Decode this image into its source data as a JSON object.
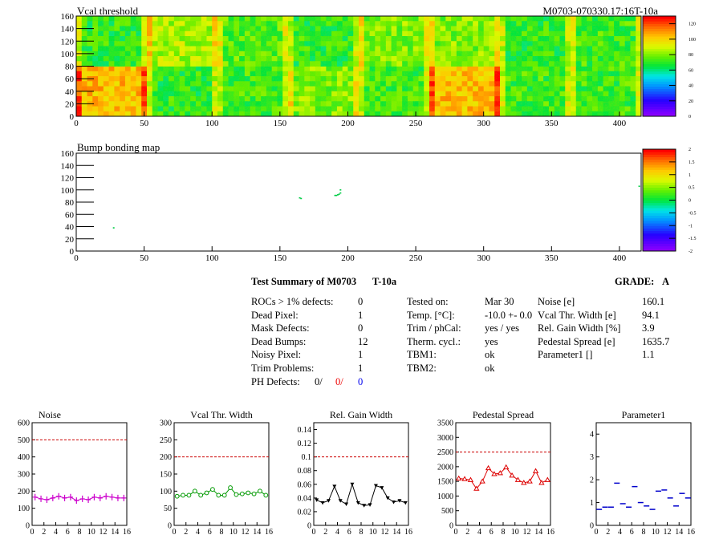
{
  "header": {
    "left_title": "Vcal threshold",
    "right_title": "M0703-070330.17:16T-10a"
  },
  "colors": {
    "marker_noise": "#cc00cc",
    "marker_vcal": "#009900",
    "marker_gain": "#000000",
    "marker_ped": "#dd0000",
    "marker_par1": "#0000cc",
    "reference_line": "#cc0000"
  },
  "chart_data": [
    {
      "type": "heatmap",
      "name": "vcal_threshold",
      "title": "Vcal threshold",
      "xlim": [
        0,
        416
      ],
      "ylim": [
        0,
        160
      ],
      "xticks": [
        0,
        50,
        100,
        150,
        200,
        250,
        300,
        350,
        400
      ],
      "yticks": [
        0,
        20,
        40,
        60,
        80,
        100,
        120,
        140,
        160
      ],
      "roc_grid": {
        "columns": 8,
        "rows": 2,
        "roc_width": 52,
        "roc_height": 80
      },
      "roc_mean_threshold": [
        [
          105,
          70,
          72,
          80,
          72,
          105,
          72,
          72
        ],
        [
          70,
          85,
          75,
          70,
          80,
          80,
          70,
          72
        ]
      ],
      "zlim": [
        0,
        130
      ],
      "colorbar_ticks": [
        0,
        20,
        40,
        60,
        80,
        100,
        120
      ]
    },
    {
      "type": "scatter",
      "name": "bump_bonding_map",
      "title": "Bump bonding map",
      "xlim": [
        0,
        416
      ],
      "ylim": [
        0,
        160
      ],
      "xticks": [
        0,
        50,
        100,
        150,
        200,
        250,
        300,
        350,
        400
      ],
      "yticks": [
        0,
        20,
        40,
        60,
        80,
        100,
        120,
        140,
        160
      ],
      "zlim": [
        -2,
        2
      ],
      "colorbar_ticks": [
        "-2",
        "-1.5",
        "-1",
        "-0.5",
        "0",
        "0.5",
        "1",
        "1.5",
        "2"
      ],
      "points": [
        [
          27,
          39
        ],
        [
          164,
          88
        ],
        [
          165,
          87
        ],
        [
          190,
          92
        ],
        [
          191,
          92
        ],
        [
          192,
          93
        ],
        [
          193,
          94
        ],
        [
          194,
          96
        ],
        [
          194,
          101
        ],
        [
          414,
          107
        ]
      ]
    },
    {
      "type": "line",
      "name": "noise",
      "title": "Noise",
      "xlim": [
        0,
        16
      ],
      "ylim": [
        0,
        600
      ],
      "xticks": [
        0,
        2,
        4,
        6,
        8,
        10,
        12,
        14,
        16
      ],
      "yticks": [
        0,
        100,
        200,
        300,
        400,
        500,
        600
      ],
      "reference": 500,
      "style": "cross",
      "x": [
        0.5,
        1.5,
        2.5,
        3.5,
        4.5,
        5.5,
        6.5,
        7.5,
        8.5,
        9.5,
        10.5,
        11.5,
        12.5,
        13.5,
        14.5,
        15.5
      ],
      "values": [
        165,
        155,
        150,
        160,
        170,
        160,
        165,
        145,
        155,
        150,
        165,
        160,
        170,
        165,
        160,
        160
      ]
    },
    {
      "type": "line",
      "name": "vcal_thr_width",
      "title": "Vcal Thr. Width",
      "xlim": [
        0,
        16
      ],
      "ylim": [
        0,
        300
      ],
      "xticks": [
        0,
        2,
        4,
        6,
        8,
        10,
        12,
        14,
        16
      ],
      "yticks": [
        0,
        50,
        100,
        150,
        200,
        250,
        300
      ],
      "reference": 200,
      "style": "circle",
      "x": [
        0.5,
        1.5,
        2.5,
        3.5,
        4.5,
        5.5,
        6.5,
        7.5,
        8.5,
        9.5,
        10.5,
        11.5,
        12.5,
        13.5,
        14.5,
        15.5
      ],
      "values": [
        85,
        88,
        88,
        100,
        88,
        95,
        105,
        88,
        88,
        110,
        90,
        92,
        95,
        92,
        100,
        88
      ]
    },
    {
      "type": "line",
      "name": "rel_gain_width",
      "title": "Rel. Gain Width",
      "xlim": [
        0,
        16
      ],
      "ylim": [
        0,
        0.15
      ],
      "xticks": [
        0,
        2,
        4,
        6,
        8,
        10,
        12,
        14,
        16
      ],
      "yticks": [
        0,
        0.02,
        0.04,
        0.06,
        0.08,
        0.1,
        0.12,
        0.14
      ],
      "ytick_labels": [
        "0",
        "0.02",
        "0.04",
        "0.06",
        "0.08",
        "0.1",
        "0.12",
        "0.14"
      ],
      "reference": 0.1,
      "style": "triangle",
      "x": [
        0.5,
        1.5,
        2.5,
        3.5,
        4.5,
        5.5,
        6.5,
        7.5,
        8.5,
        9.5,
        10.5,
        11.5,
        12.5,
        13.5,
        14.5,
        15.5
      ],
      "values": [
        0.037,
        0.033,
        0.036,
        0.057,
        0.036,
        0.031,
        0.06,
        0.033,
        0.029,
        0.03,
        0.058,
        0.055,
        0.04,
        0.034,
        0.036,
        0.033
      ]
    },
    {
      "type": "line",
      "name": "pedestal_spread",
      "title": "Pedestal Spread",
      "xlim": [
        0,
        16
      ],
      "ylim": [
        0,
        3500
      ],
      "xticks": [
        0,
        2,
        4,
        6,
        8,
        10,
        12,
        14,
        16
      ],
      "yticks": [
        0,
        500,
        1000,
        1500,
        2000,
        2500,
        3000,
        3500
      ],
      "reference": 2500,
      "style": "open-triangle",
      "x": [
        0.5,
        1.5,
        2.5,
        3.5,
        4.5,
        5.5,
        6.5,
        7.5,
        8.5,
        9.5,
        10.5,
        11.5,
        12.5,
        13.5,
        14.5,
        15.5
      ],
      "values": [
        1600,
        1580,
        1550,
        1250,
        1500,
        1950,
        1750,
        1780,
        1980,
        1700,
        1550,
        1450,
        1500,
        1850,
        1450,
        1550
      ]
    },
    {
      "type": "scatter",
      "name": "parameter1",
      "title": "Parameter1",
      "xlim": [
        0,
        16
      ],
      "ylim": [
        0,
        4.5
      ],
      "xticks": [
        0,
        2,
        4,
        6,
        8,
        10,
        12,
        14,
        16
      ],
      "yticks": [
        0,
        1,
        2,
        3,
        4
      ],
      "style": "hline",
      "x": [
        0.5,
        1.5,
        2.5,
        3.5,
        4.5,
        5.5,
        6.5,
        7.5,
        8.5,
        9.5,
        10.5,
        11.5,
        12.5,
        13.5,
        14.5,
        15.5
      ],
      "values": [
        0.7,
        0.8,
        0.8,
        1.85,
        0.95,
        0.8,
        1.7,
        1.0,
        0.85,
        0.7,
        1.5,
        1.55,
        1.2,
        0.85,
        1.4,
        1.2
      ]
    }
  ],
  "summary": {
    "title": "Test Summary of M0703",
    "test_name": "T-10a",
    "grade_label": "GRADE:",
    "grade": "A",
    "defects": [
      {
        "label": "ROCs > 1% defects:",
        "value": "0"
      },
      {
        "label": "Dead Pixel:",
        "value": "1"
      },
      {
        "label": "Mask Defects:",
        "value": "0"
      },
      {
        "label": "Dead Bumps:",
        "value": "12"
      },
      {
        "label": "Noisy Pixel:",
        "value": "1"
      },
      {
        "label": "Trim Problems:",
        "value": "1"
      }
    ],
    "ph_defects": {
      "label": "PH Defects:",
      "v1": "0/",
      "v2": "0/",
      "v3": "0"
    },
    "conditions": [
      {
        "label": "Tested on:",
        "value": "Mar 30"
      },
      {
        "label": "Temp. [°C]:",
        "value": "-10.0 +- 0.0"
      },
      {
        "label": "Trim / phCal:",
        "value": "yes / yes"
      },
      {
        "label": "Therm. cycl.:",
        "value": "yes"
      },
      {
        "label": "TBM1:",
        "value": "ok"
      },
      {
        "label": "TBM2:",
        "value": "ok"
      }
    ],
    "results": [
      {
        "label": "Noise [e]",
        "value": "160.1"
      },
      {
        "label": "Vcal Thr. Width [e]",
        "value": "94.1"
      },
      {
        "label": "Rel. Gain Width [%]",
        "value": "3.9"
      },
      {
        "label": "Pedestal Spread [e]",
        "value": "1635.7"
      },
      {
        "label": "Parameter1 []",
        "value": "1.1"
      }
    ]
  }
}
